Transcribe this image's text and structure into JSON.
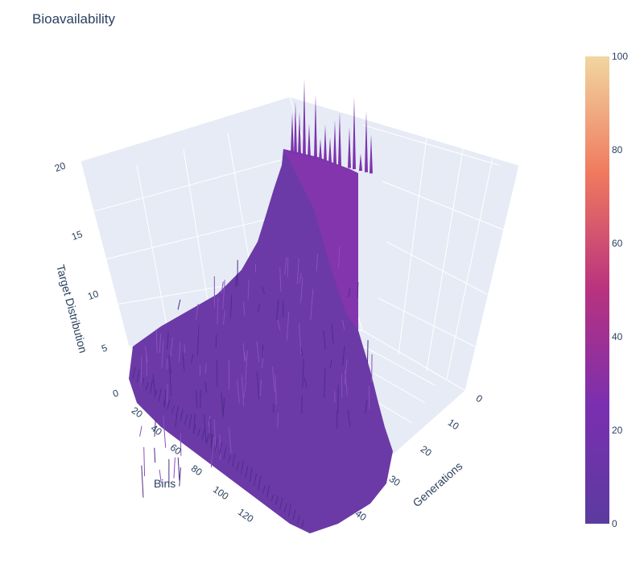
{
  "chart_data": {
    "type": "surface",
    "title": "Bioavailability",
    "x_label": "Generations",
    "y_label": "Bins",
    "z_label": "Target Distribution",
    "x_ticks": [
      "0",
      "10",
      "20",
      "30",
      "40"
    ],
    "y_ticks": [
      "20",
      "40",
      "60",
      "80",
      "100",
      "120"
    ],
    "z_ticks": [
      "0",
      "5",
      "10",
      "15",
      "20"
    ],
    "x_range": [
      0,
      48
    ],
    "y_range": [
      0,
      130
    ],
    "z_range": [
      0,
      20
    ],
    "colorscale": [
      "#5b3b9f",
      "#7a2fb0",
      "#b8327f",
      "#f07a5e",
      "#f1d6a0"
    ],
    "colorbar": {
      "ticks": [
        "0",
        "20",
        "40",
        "60",
        "80",
        "100"
      ],
      "range": [
        0,
        100
      ]
    },
    "grid": true,
    "surface_colors": {
      "back_wall": "#e6ebf5",
      "floor": "#e6ebf5",
      "grid": "#ffffff",
      "surface_low": "#6a3aa6",
      "surface_high": "#7c34ad"
    }
  }
}
